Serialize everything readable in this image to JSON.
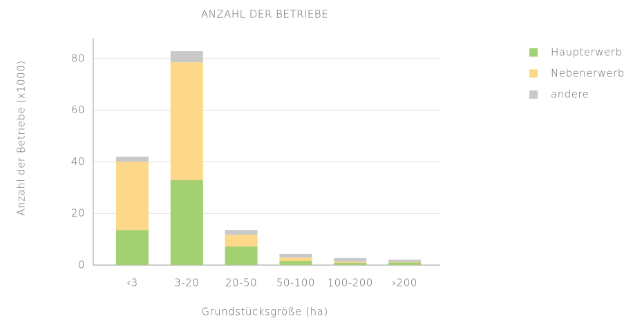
{
  "chart_data": {
    "type": "stacked_bar",
    "title": "ANZAHL DER BETRIEBE",
    "y_label": "Anzahl der Betriebe (x1000)",
    "x_label": "Grundstücksgröße (ha)",
    "categories": [
      "‹3",
      "3-20",
      "20-50",
      "50-100",
      "100-200",
      "›200"
    ],
    "series": [
      {
        "name": "Haupterwerb",
        "color": "#a3d070",
        "values": [
          13.6,
          32.9,
          7.2,
          1.6,
          0.8,
          1.0
        ]
      },
      {
        "name": "Nebenerwerb",
        "color": "#fdd88a",
        "values": [
          26.5,
          45.7,
          4.6,
          1.3,
          0.5,
          0.2
        ]
      },
      {
        "name": "andere",
        "color": "#c9c9ca",
        "values": [
          1.9,
          4.3,
          1.8,
          1.4,
          1.4,
          0.9
        ]
      }
    ],
    "ylim": [
      0,
      88
    ],
    "yticks": [
      0,
      20,
      40,
      60,
      80
    ],
    "grid": true,
    "legend": "right"
  }
}
